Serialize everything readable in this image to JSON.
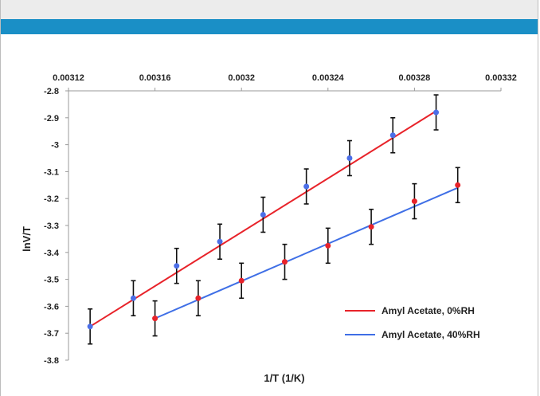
{
  "chart_data": {
    "type": "scatter",
    "title": "",
    "xlabel": "1/T (1/K)",
    "ylabel": "lnV/T",
    "xlim": [
      0.00312,
      0.00332
    ],
    "ylim": [
      -3.8,
      -2.8
    ],
    "x_ticks": [
      "0.00312",
      "0.00316",
      "0.0032",
      "0.00324",
      "0.00328",
      "0.00332"
    ],
    "y_ticks": [
      "-2.8",
      "-2.9",
      "-3",
      "-3.1",
      "-3.2",
      "-3.3",
      "-3.4",
      "-3.5",
      "-3.6",
      "-3.7",
      "-3.8"
    ],
    "x_axis_position": "top",
    "grid": false,
    "legend_position": "bottom-right",
    "error_bar": 0.065,
    "series": [
      {
        "name": "Amyl Acetate, 0%RH",
        "line_color": "#e8232a",
        "marker_color": "#4c6fe8",
        "x": [
          0.00313,
          0.00315,
          0.00317,
          0.00319,
          0.00321,
          0.00323,
          0.00325,
          0.00327,
          0.00329
        ],
        "y": [
          -3.675,
          -3.57,
          -3.45,
          -3.36,
          -3.26,
          -3.155,
          -3.05,
          -2.965,
          -2.88
        ],
        "fit": [
          [
            0.00313,
            -3.675
          ],
          [
            0.00329,
            -2.875
          ]
        ]
      },
      {
        "name": "Amyl Acetate, 40%RH",
        "line_color": "#3f6fe6",
        "marker_color": "#e8232a",
        "x": [
          0.00316,
          0.00318,
          0.0032,
          0.00322,
          0.00324,
          0.00326,
          0.00328,
          0.0033
        ],
        "y": [
          -3.645,
          -3.57,
          -3.505,
          -3.435,
          -3.375,
          -3.305,
          -3.21,
          -3.15
        ],
        "fit": [
          [
            0.00316,
            -3.645
          ],
          [
            0.0033,
            -3.16
          ]
        ]
      }
    ]
  }
}
